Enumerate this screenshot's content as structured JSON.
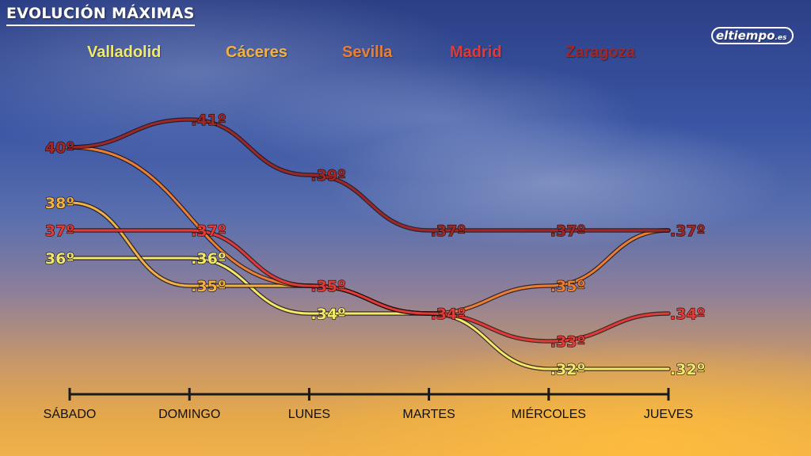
{
  "header": {
    "title": "EVOLUCIÓN MÁXIMAS",
    "logo_text": "eltiempo",
    "logo_suffix": ".es"
  },
  "colors": {
    "Valladolid": "#f0e96a",
    "Cáceres": "#f0b243",
    "Sevilla": "#ea7f34",
    "Madrid": "#e23a36",
    "Zaragoza": "#9e2828",
    "axis": "#1a1a1a"
  },
  "chart_data": {
    "type": "line",
    "title": "EVOLUCIÓN MÁXIMAS",
    "categories": [
      "SÁBADO",
      "DOMINGO",
      "LUNES",
      "MARTES",
      "MIÉRCOLES",
      "JUEVES"
    ],
    "series": [
      {
        "name": "Valladolid",
        "values": [
          36,
          36,
          34,
          34,
          32,
          32
        ]
      },
      {
        "name": "Cáceres",
        "values": [
          38,
          35,
          35,
          34,
          null,
          null
        ]
      },
      {
        "name": "Sevilla",
        "values": [
          40,
          null,
          35,
          34,
          35,
          37
        ]
      },
      {
        "name": "Madrid",
        "values": [
          37,
          37,
          35,
          34,
          33,
          34
        ]
      },
      {
        "name": "Zaragoza",
        "values": [
          40,
          41,
          39,
          37,
          37,
          37
        ]
      }
    ],
    "labels": [
      {
        "series": "Zaragoza",
        "x": "SÁBADO",
        "text": "40º"
      },
      {
        "series": "Zaragoza",
        "x": "DOMINGO",
        "text": "41º"
      },
      {
        "series": "Zaragoza",
        "x": "LUNES",
        "text": "39º"
      },
      {
        "series": "Zaragoza",
        "x": "MARTES",
        "text": "37º"
      },
      {
        "series": "Zaragoza",
        "x": "MIÉRCOLES",
        "text": "37º"
      },
      {
        "series": "Zaragoza",
        "x": "JUEVES",
        "text": "37º"
      },
      {
        "series": "Cáceres",
        "x": "SÁBADO",
        "text": "38º"
      },
      {
        "series": "Madrid",
        "x": "SÁBADO",
        "text": "37º"
      },
      {
        "series": "Valladolid",
        "x": "SÁBADO",
        "text": "36º"
      },
      {
        "series": "Madrid",
        "x": "DOMINGO",
        "text": "37º"
      },
      {
        "series": "Valladolid",
        "x": "DOMINGO",
        "text": "36º"
      },
      {
        "series": "Cáceres",
        "x": "DOMINGO",
        "text": "35º"
      },
      {
        "series": "Madrid",
        "x": "LUNES",
        "text": "35º"
      },
      {
        "series": "Valladolid",
        "x": "LUNES",
        "text": "34º"
      },
      {
        "series": "Madrid",
        "x": "MARTES",
        "text": "34º"
      },
      {
        "series": "Sevilla",
        "x": "MIÉRCOLES",
        "text": "35º"
      },
      {
        "series": "Madrid",
        "x": "MIÉRCOLES",
        "text": "33º"
      },
      {
        "series": "Valladolid",
        "x": "MIÉRCOLES",
        "text": "32º"
      },
      {
        "series": "Madrid",
        "x": "JUEVES",
        "text": "34º"
      },
      {
        "series": "Valladolid",
        "x": "JUEVES",
        "text": "32º"
      }
    ],
    "xlabel": "",
    "ylabel": "",
    "ylim": [
      32,
      41
    ],
    "grid": false,
    "legend_position": "top"
  }
}
